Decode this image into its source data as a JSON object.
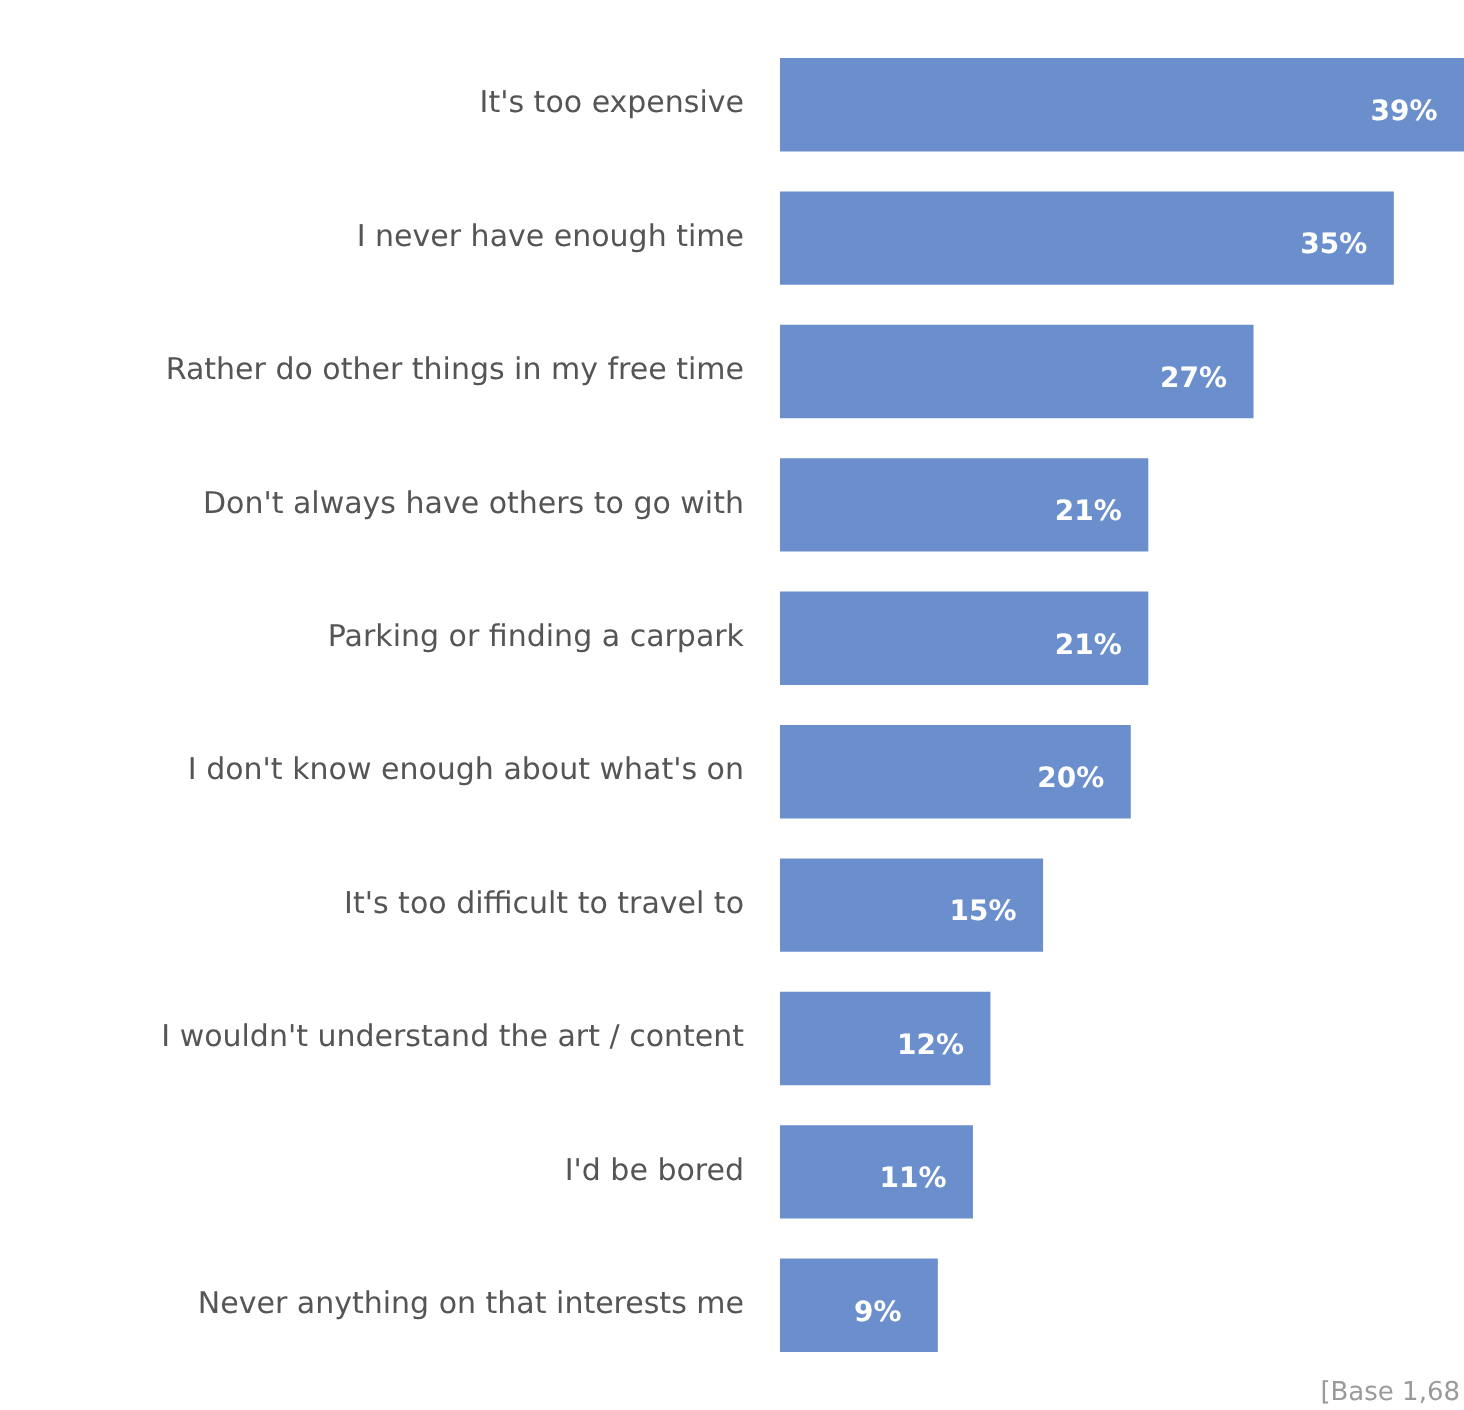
{
  "chart_data": {
    "type": "bar",
    "orientation": "horizontal",
    "categories": [
      "It's too expensive",
      "I never have enough time",
      "Rather do other things in my free time",
      "Don't always have others to go with",
      "Parking or finding a carpark",
      "I don't know enough about what's on",
      "It's too difficult to travel to",
      "I wouldn't understand the art / content",
      "I'd be bored",
      "Never anything on that interests me"
    ],
    "values": [
      39,
      35,
      27,
      21,
      21,
      20,
      15,
      12,
      11,
      9
    ],
    "value_labels": [
      "39%",
      "35%",
      "27%",
      "21%",
      "21%",
      "20%",
      "15%",
      "12%",
      "11%",
      "9%"
    ],
    "color": "#6a8fcc",
    "annotations": [
      "[Base 1,68"
    ],
    "legend": false
  }
}
